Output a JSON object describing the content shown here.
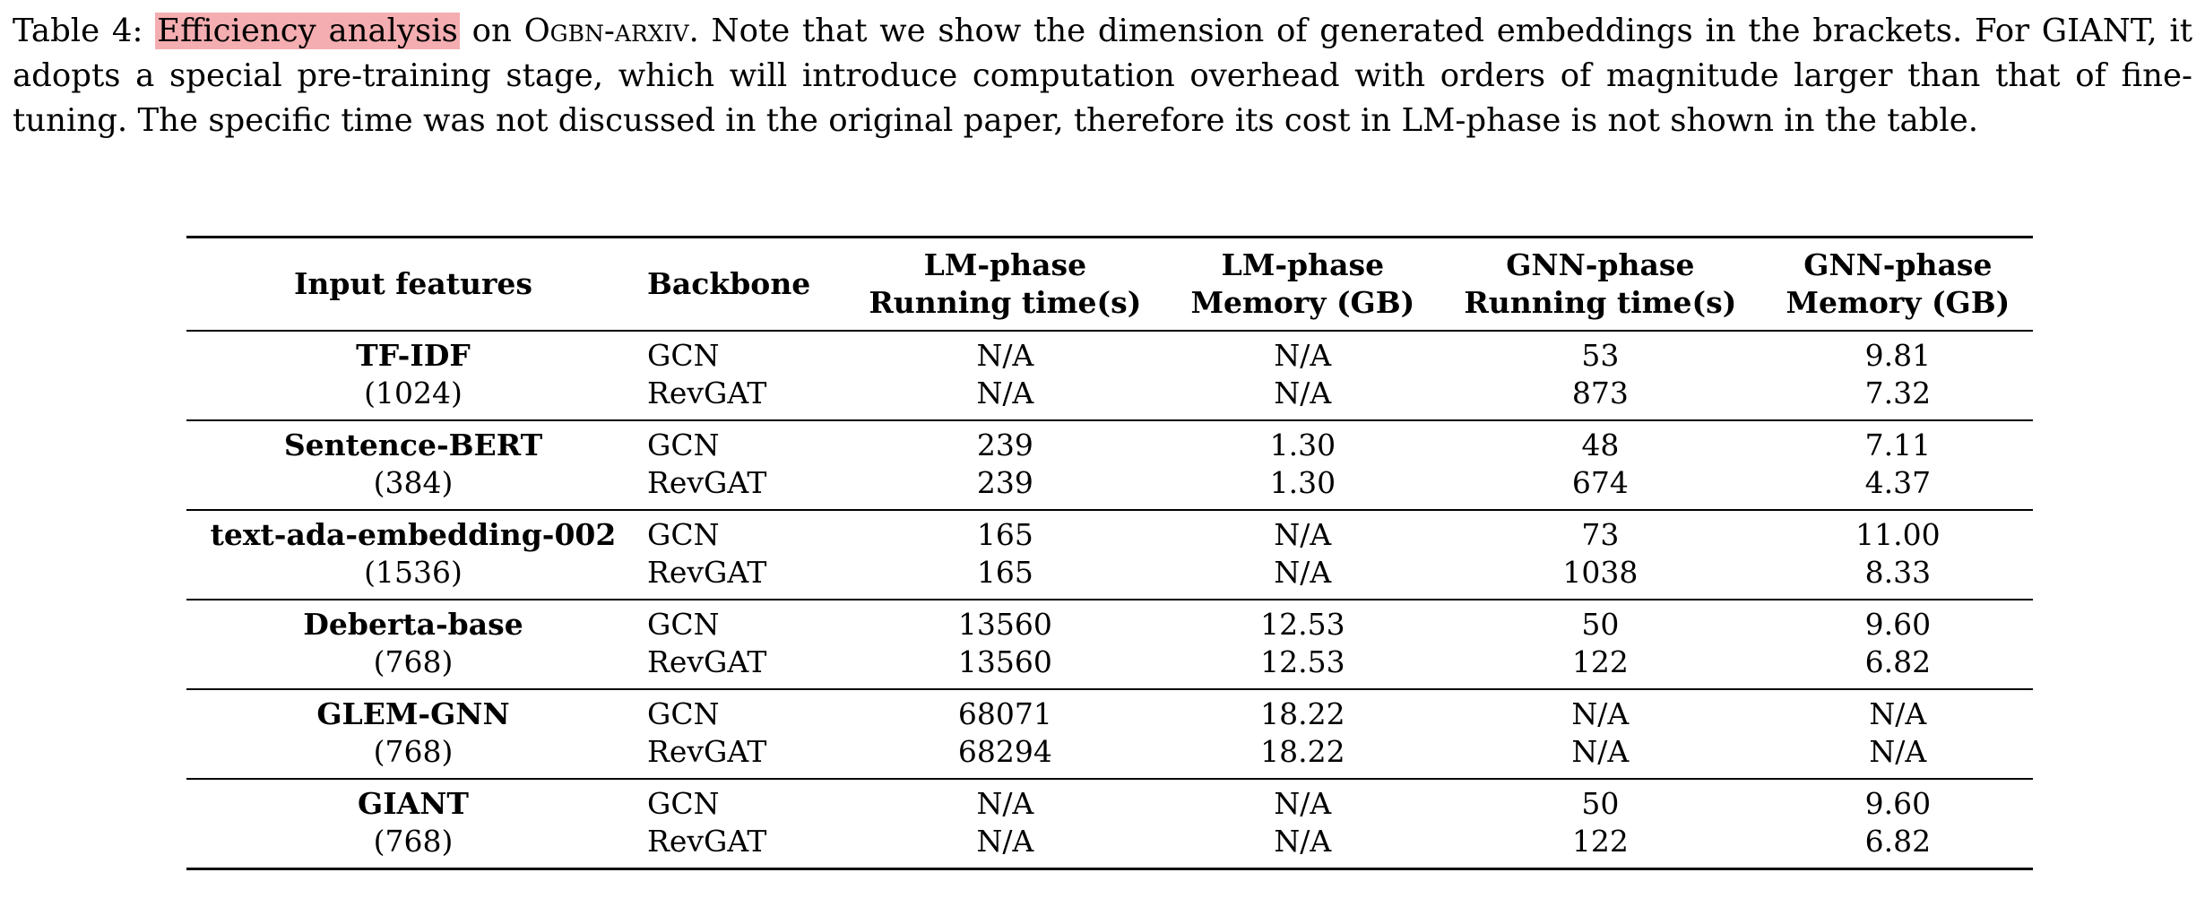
{
  "caption": {
    "label": "Table 4:",
    "highlight": "Efficiency analysis",
    "on": "on",
    "dataset": "Ogbn-arxiv",
    "rest": ". Note that we show the dimension of generated embeddings in the brackets. For GIANT, it adopts a special pre-training stage, which will introduce computation overhead with orders of magnitude larger than that of fine-tuning. The specific time was not discussed in the original paper, therefore its cost in LM-phase is not shown in the table."
  },
  "table": {
    "headers": {
      "input_features": "Input features",
      "backbone": "Backbone",
      "lm_time_1": "LM-phase",
      "lm_time_2": "Running time(s)",
      "lm_mem_1": "LM-phase",
      "lm_mem_2": "Memory (GB)",
      "gnn_time_1": "GNN-phase",
      "gnn_time_2": "Running time(s)",
      "gnn_mem_1": "GNN-phase",
      "gnn_mem_2": "Memory (GB)"
    },
    "groups": [
      {
        "feature": "TF-IDF",
        "dim": "(1024)",
        "rows": [
          {
            "backbone": "GCN",
            "lm_time": "N/A",
            "lm_mem": "N/A",
            "gnn_time": "53",
            "gnn_mem": "9.81"
          },
          {
            "backbone": "RevGAT",
            "lm_time": "N/A",
            "lm_mem": "N/A",
            "gnn_time": "873",
            "gnn_mem": "7.32"
          }
        ]
      },
      {
        "feature": "Sentence-BERT",
        "dim": "(384)",
        "rows": [
          {
            "backbone": "GCN",
            "lm_time": "239",
            "lm_mem": "1.30",
            "gnn_time": "48",
            "gnn_mem": "7.11"
          },
          {
            "backbone": "RevGAT",
            "lm_time": "239",
            "lm_mem": "1.30",
            "gnn_time": "674",
            "gnn_mem": "4.37"
          }
        ]
      },
      {
        "feature": "text-ada-embedding-002",
        "dim": "(1536)",
        "rows": [
          {
            "backbone": "GCN",
            "lm_time": "165",
            "lm_mem": "N/A",
            "gnn_time": "73",
            "gnn_mem": "11.00"
          },
          {
            "backbone": "RevGAT",
            "lm_time": "165",
            "lm_mem": "N/A",
            "gnn_time": "1038",
            "gnn_mem": "8.33"
          }
        ]
      },
      {
        "feature": "Deberta-base",
        "dim": "(768)",
        "rows": [
          {
            "backbone": "GCN",
            "lm_time": "13560",
            "lm_mem": "12.53",
            "gnn_time": "50",
            "gnn_mem": "9.60"
          },
          {
            "backbone": "RevGAT",
            "lm_time": "13560",
            "lm_mem": "12.53",
            "gnn_time": "122",
            "gnn_mem": "6.82"
          }
        ]
      },
      {
        "feature": "GLEM-GNN",
        "dim": "(768)",
        "rows": [
          {
            "backbone": "GCN",
            "lm_time": "68071",
            "lm_mem": "18.22",
            "gnn_time": "N/A",
            "gnn_mem": "N/A"
          },
          {
            "backbone": "RevGAT",
            "lm_time": "68294",
            "lm_mem": "18.22",
            "gnn_time": "N/A",
            "gnn_mem": "N/A"
          }
        ]
      },
      {
        "feature": "GIANT",
        "dim": "(768)",
        "rows": [
          {
            "backbone": "GCN",
            "lm_time": "N/A",
            "lm_mem": "N/A",
            "gnn_time": "50",
            "gnn_mem": "9.60"
          },
          {
            "backbone": "RevGAT",
            "lm_time": "N/A",
            "lm_mem": "N/A",
            "gnn_time": "122",
            "gnn_mem": "6.82"
          }
        ]
      }
    ]
  }
}
